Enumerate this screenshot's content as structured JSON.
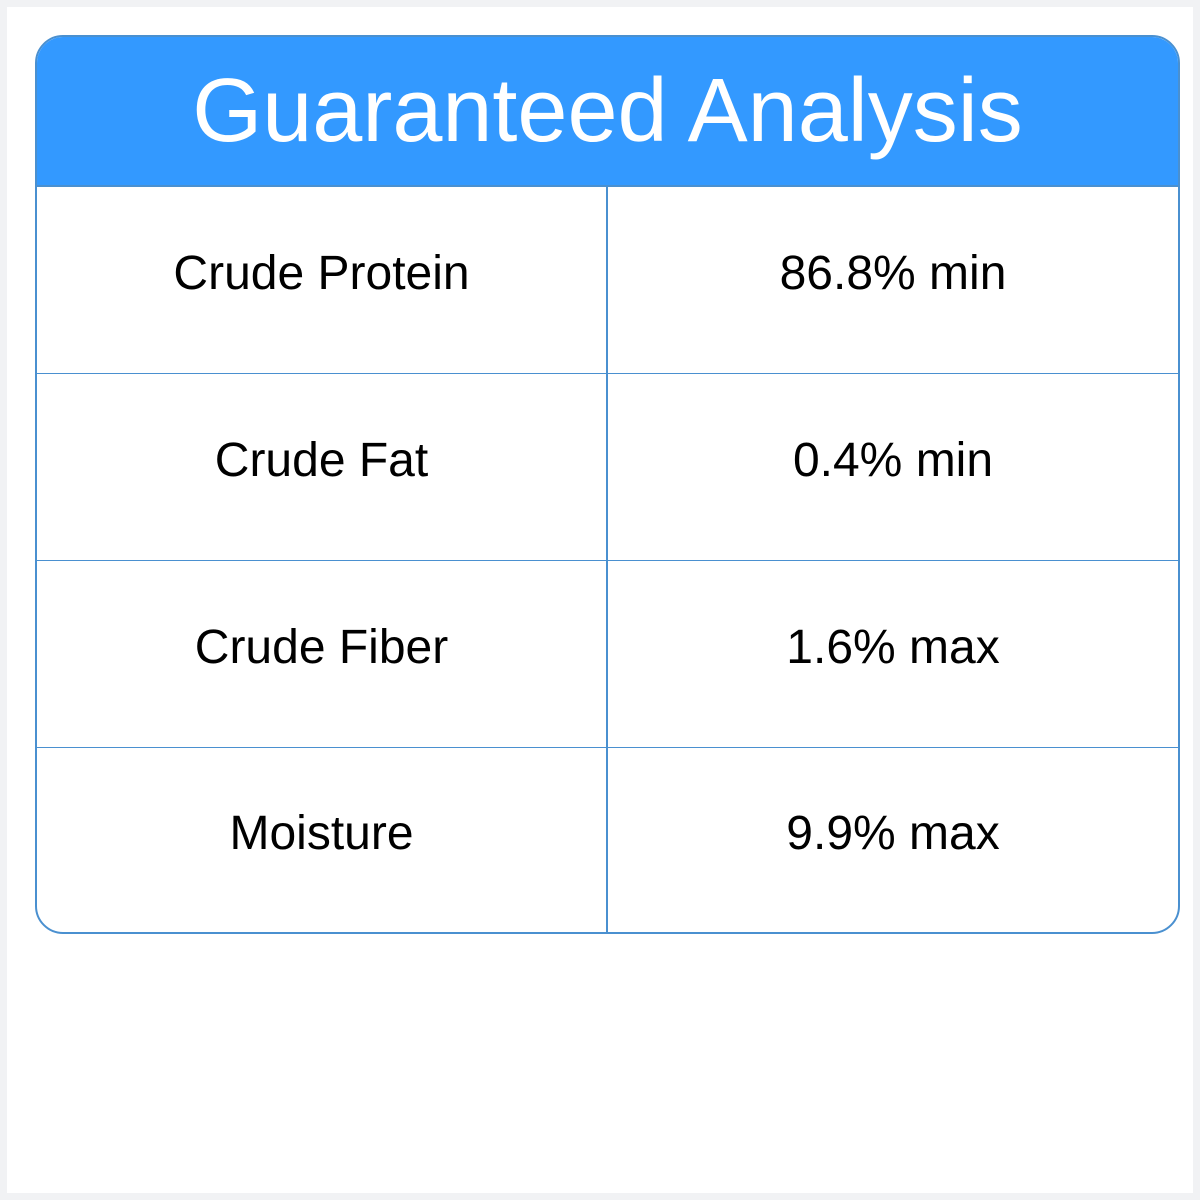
{
  "title": "Guaranteed Analysis",
  "colors": {
    "header": "#3399ff",
    "border": "#4a90d0"
  },
  "rows": [
    {
      "nutrient": "Crude Protein",
      "value": "86.8% min"
    },
    {
      "nutrient": "Crude Fat",
      "value": "0.4% min"
    },
    {
      "nutrient": "Crude Fiber",
      "value": "1.6% max"
    },
    {
      "nutrient": "Moisture",
      "value": "9.9% max"
    }
  ]
}
